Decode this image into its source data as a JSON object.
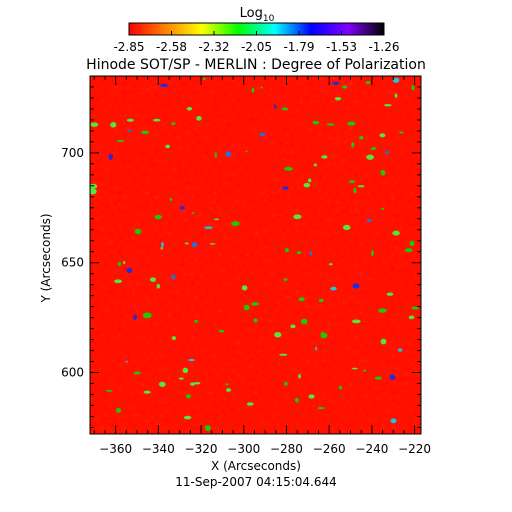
{
  "chart_data": {
    "type": "heatmap",
    "title": "Hinode SOT/SP - MERLIN : Degree of Polarization",
    "xlabel": "X (Arcseconds)",
    "ylabel": "Y (Arcseconds)",
    "timestamp": "11-Sep-2007 04:15:04.644",
    "xlim": [
      -372,
      -217
    ],
    "ylim": [
      572,
      735
    ],
    "x_ticks": [
      -360,
      -340,
      -320,
      -300,
      -280,
      -260,
      -240,
      -220
    ],
    "y_ticks": [
      600,
      650,
      700
    ],
    "grid": false,
    "colorbar": {
      "label_base": "Log",
      "label_sub": "10",
      "ticks": [
        "-2.85",
        "-2.58",
        "-2.32",
        "-2.05",
        "-1.79",
        "-1.53",
        "-1.26"
      ],
      "range": [
        -2.85,
        -1.26
      ],
      "colormap": [
        "#ff0000",
        "#ff8000",
        "#ffff00",
        "#00ff00",
        "#00ffff",
        "#0000ff",
        "#8000ff",
        "#000000"
      ]
    },
    "dominant_range": [
      -2.85,
      -2.32
    ]
  }
}
